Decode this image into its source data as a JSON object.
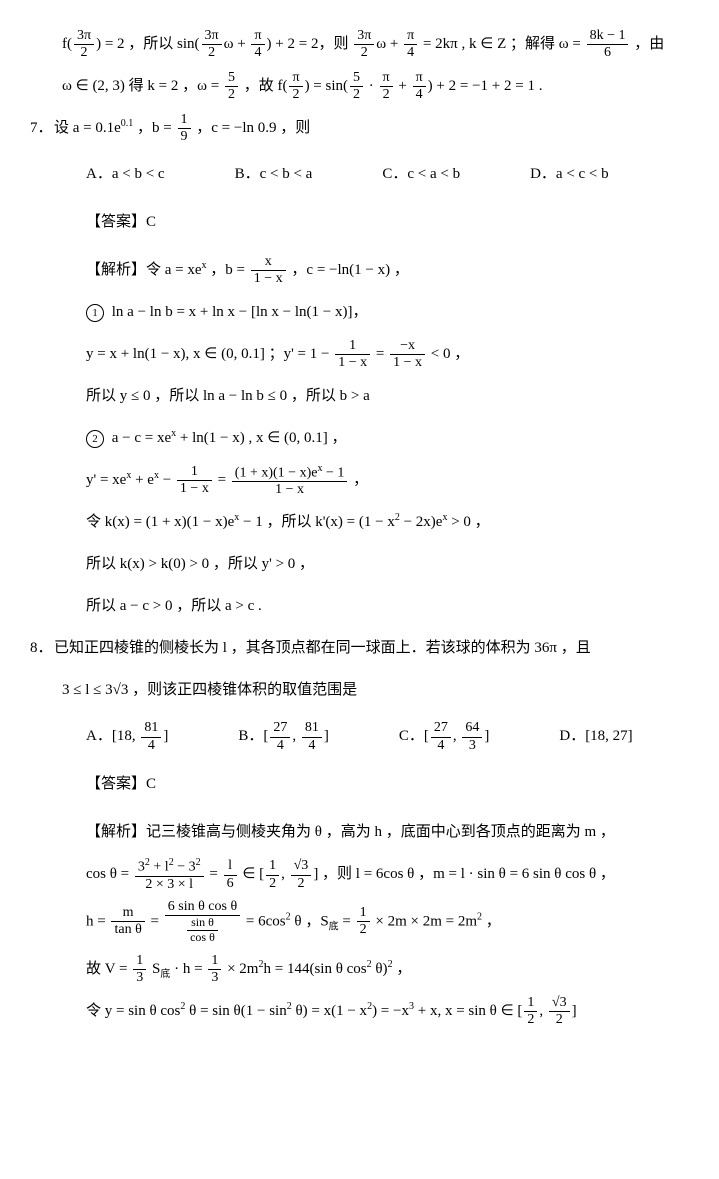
{
  "q6tail": {
    "l1_a": "f(",
    "l1_frac1": {
      "n": "3π",
      "d": "2"
    },
    "l1_b": ") = 2 ，所以 sin(",
    "l1_frac2": {
      "n": "3π",
      "d": "2"
    },
    "l1_c": "ω + ",
    "l1_frac3": {
      "n": "π",
      "d": "4"
    },
    "l1_d": ") + 2 = 2，则 ",
    "l1_frac4": {
      "n": "3π",
      "d": "2"
    },
    "l1_e": "ω + ",
    "l1_frac5": {
      "n": "π",
      "d": "4"
    },
    "l1_f": " = 2kπ , k ∈ Z ；解得 ω = ",
    "l1_frac6": {
      "n": "8k − 1",
      "d": "6"
    },
    "l1_g": " ，由",
    "l2_a": "ω ∈ (2, 3) 得 k = 2 ，ω = ",
    "l2_frac1": {
      "n": "5",
      "d": "2"
    },
    "l2_b": " ，故 f(",
    "l2_frac2": {
      "n": "π",
      "d": "2"
    },
    "l2_c": ") = sin(",
    "l2_frac3": {
      "n": "5",
      "d": "2"
    },
    "l2_d": " · ",
    "l2_frac4": {
      "n": "π",
      "d": "2"
    },
    "l2_e": " + ",
    "l2_frac5": {
      "n": "π",
      "d": "4"
    },
    "l2_f": ") + 2 = −1 + 2 = 1 ."
  },
  "q7": {
    "num": "7．",
    "stem_a": "设 a = 0.1e",
    "stem_exp": "0.1",
    "stem_b": " ，b = ",
    "stem_frac": {
      "n": "1",
      "d": "9"
    },
    "stem_c": " ，c = −ln 0.9 ，则",
    "opts": {
      "A": "A．a < b < c",
      "B": "B．c < b < a",
      "C": "C．c < a < b",
      "D": "D．a < c < b"
    },
    "answer": "【答案】C",
    "jx_label": "【解析】",
    "jx1_a": "令 a = xe",
    "jx1_exp": "x",
    "jx1_b": " ，b = ",
    "jx1_frac": {
      "n": "x",
      "d": "1 − x"
    },
    "jx1_c": " ，c = −ln(1 − x) ，",
    "c1_text": "ln a − ln b = x + ln x − [ln x − ln(1 − x)]",
    "c1_tail": "，",
    "l_y_a": "y = x + ln(1 − x), x ∈ (0, 0.1] ；y' = 1 − ",
    "l_y_frac1": {
      "n": "1",
      "d": "1 − x"
    },
    "l_y_b": " = ",
    "l_y_frac2": {
      "n": "−x",
      "d": "1 − x"
    },
    "l_y_c": " < 0 ，",
    "l_so1": "所以 y ≤ 0 ，所以 ln a − ln b ≤ 0 ，所以 b > a",
    "c2_a": "a − c = xe",
    "c2_exp": "x",
    "c2_b": " + ln(1 − x) , x ∈ (0, 0.1] ，",
    "l_yp_a": "y' = xe",
    "l_yp_exp1": "x",
    "l_yp_b": " + e",
    "l_yp_exp2": "x",
    "l_yp_c": " − ",
    "l_yp_frac1": {
      "n": "1",
      "d": "1 − x"
    },
    "l_yp_d": " = ",
    "l_yp_frac2_n_a": "(1 + x)(1 − x)e",
    "l_yp_frac2_n_exp": "x",
    "l_yp_frac2_n_b": " − 1",
    "l_yp_frac2_d": "1 − x",
    "l_yp_e": " ，",
    "l_k_a": "令 k(x) = (1 + x)(1 − x)e",
    "l_k_exp1": "x",
    "l_k_b": " − 1 ，所以 k'(x) = (1 − x",
    "l_k_sup2": "2",
    "l_k_c": " − 2x)e",
    "l_k_exp2": "x",
    "l_k_d": " > 0 ，",
    "l_so2": "所以 k(x) > k(0) > 0 ，所以 y' > 0 ，",
    "l_so3": "所以 a − c > 0 ，所以 a > c ."
  },
  "q8": {
    "num": "8．",
    "stem1": "已知正四棱锥的侧棱长为 l ，其各顶点都在同一球面上．若该球的体积为 36π ，且",
    "stem2_a": "3 ≤ l ≤ 3√3 ，则该正四棱锥体积的取值范围是",
    "opts_A_a": "A．[18, ",
    "opts_A_frac": {
      "n": "81",
      "d": "4"
    },
    "opts_A_b": "]",
    "opts_B_a": "B．[",
    "opts_B_frac1": {
      "n": "27",
      "d": "4"
    },
    "opts_B_b": ", ",
    "opts_B_frac2": {
      "n": "81",
      "d": "4"
    },
    "opts_B_c": "]",
    "opts_C_a": "C．[",
    "opts_C_frac1": {
      "n": "27",
      "d": "4"
    },
    "opts_C_b": ", ",
    "opts_C_frac2": {
      "n": "64",
      "d": "3"
    },
    "opts_C_c": "]",
    "opts_D": "D．[18, 27]",
    "answer": "【答案】C",
    "jx_label": "【解析】",
    "jx_intro": "记三棱锥高与侧棱夹角为 θ ，高为 h ，底面中心到各顶点的距离为 m ，",
    "cos_a": "cos θ = ",
    "cos_frac1_n_a": "3",
    "cos_frac1_n_sup1": "2",
    "cos_frac1_n_b": " + l",
    "cos_frac1_n_sup2": "2",
    "cos_frac1_n_c": " − 3",
    "cos_frac1_n_sup3": "2",
    "cos_frac1_d": "2 × 3 × l",
    "cos_b": " = ",
    "cos_frac2": {
      "n": "l",
      "d": "6"
    },
    "cos_c": " ∈ [",
    "cos_frac3": {
      "n": "1",
      "d": "2"
    },
    "cos_d": ", ",
    "cos_frac4": {
      "n": "√3",
      "d": "2"
    },
    "cos_e": "] ，则 l = 6cos θ ，m = l · sin θ = 6 sin θ cos θ ，",
    "h_a": "h = ",
    "h_frac1": {
      "n": "m",
      "d": "tan θ"
    },
    "h_b": " = ",
    "h_frac2_n": "6 sin θ cos θ",
    "h_frac2_d_n": "sin θ",
    "h_frac2_d_d": "cos θ",
    "h_c": " = 6cos",
    "h_sup": "2",
    "h_d": " θ ，S",
    "h_sub": "底",
    "h_e": " = ",
    "h_frac3": {
      "n": "1",
      "d": "2"
    },
    "h_f": " × 2m × 2m = 2m",
    "h_sup2": "2",
    "h_g": " ，",
    "V_a": "故 V = ",
    "V_frac1": {
      "n": "1",
      "d": "3"
    },
    "V_b": " S",
    "V_sub": "底",
    "V_c": " · h = ",
    "V_frac2": {
      "n": "1",
      "d": "3"
    },
    "V_d": " × 2m",
    "V_sup1": "2",
    "V_e": "h = 144(sin θ cos",
    "V_sup2": "2",
    "V_f": " θ)",
    "V_sup3": "2",
    "V_g": " ，",
    "y_a": "令 y = sin θ cos",
    "y_sup1": "2",
    "y_b": " θ = sin θ(1 − sin",
    "y_sup2": "2",
    "y_c": " θ) = x(1 − x",
    "y_sup3": "2",
    "y_d": ") = −x",
    "y_sup4": "3",
    "y_e": " + x, x = sin θ ∈ [",
    "y_frac1": {
      "n": "1",
      "d": "2"
    },
    "y_f": ", ",
    "y_frac2": {
      "n": "√3",
      "d": "2"
    },
    "y_g": "]"
  }
}
